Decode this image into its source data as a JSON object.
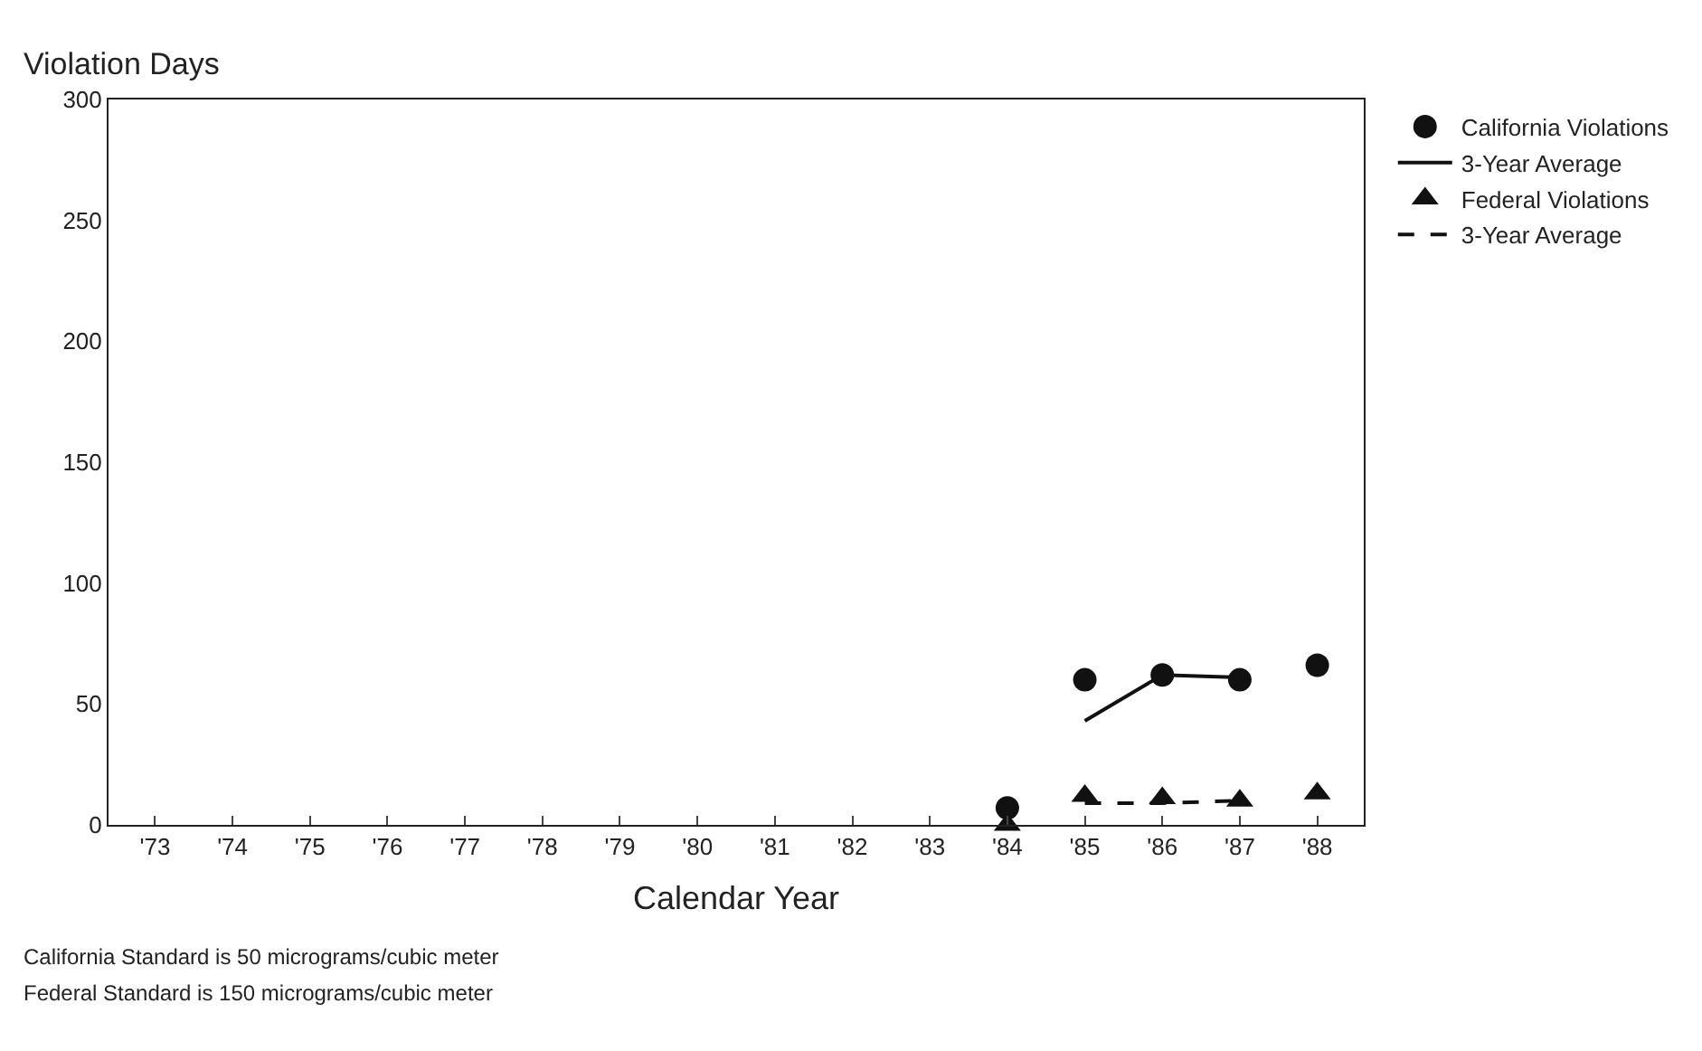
{
  "chart_data": {
    "type": "scatter",
    "ylabel": "Violation Days",
    "xlabel": "Calendar Year",
    "categories": [
      "'73",
      "'74",
      "'75",
      "'76",
      "'77",
      "'78",
      "'79",
      "'80",
      "'81",
      "'82",
      "'83",
      "'84",
      "'85",
      "'86",
      "'87",
      "'88"
    ],
    "series": [
      {
        "name": "California Violations",
        "marker": "circle",
        "color": "#111111",
        "values": [
          null,
          null,
          null,
          null,
          null,
          null,
          null,
          null,
          null,
          null,
          null,
          7,
          60,
          62,
          60,
          66
        ]
      },
      {
        "name": "3-Year Average",
        "type": "line",
        "marker": "none",
        "line_style": "solid",
        "color": "#111111",
        "values": [
          null,
          null,
          null,
          null,
          null,
          null,
          null,
          null,
          null,
          null,
          null,
          null,
          43,
          62,
          61,
          null
        ]
      },
      {
        "name": "Federal Violations",
        "marker": "triangle",
        "color": "#111111",
        "values": [
          null,
          null,
          null,
          null,
          null,
          null,
          null,
          null,
          null,
          null,
          null,
          0,
          12,
          11,
          10,
          13
        ]
      },
      {
        "name": "3-Year Average",
        "type": "line",
        "marker": "none",
        "line_style": "dashed",
        "color": "#111111",
        "values": [
          null,
          null,
          null,
          null,
          null,
          null,
          null,
          null,
          null,
          null,
          null,
          null,
          9,
          9,
          10,
          null
        ]
      }
    ],
    "ylim": [
      0,
      300
    ],
    "yticks": [
      0,
      50,
      100,
      150,
      200,
      250,
      300
    ],
    "legend": "top right",
    "annotations": [
      "California Standard is 50 micrograms/cubic meter",
      "Federal Standard is 150 micrograms/cubic meter"
    ]
  }
}
